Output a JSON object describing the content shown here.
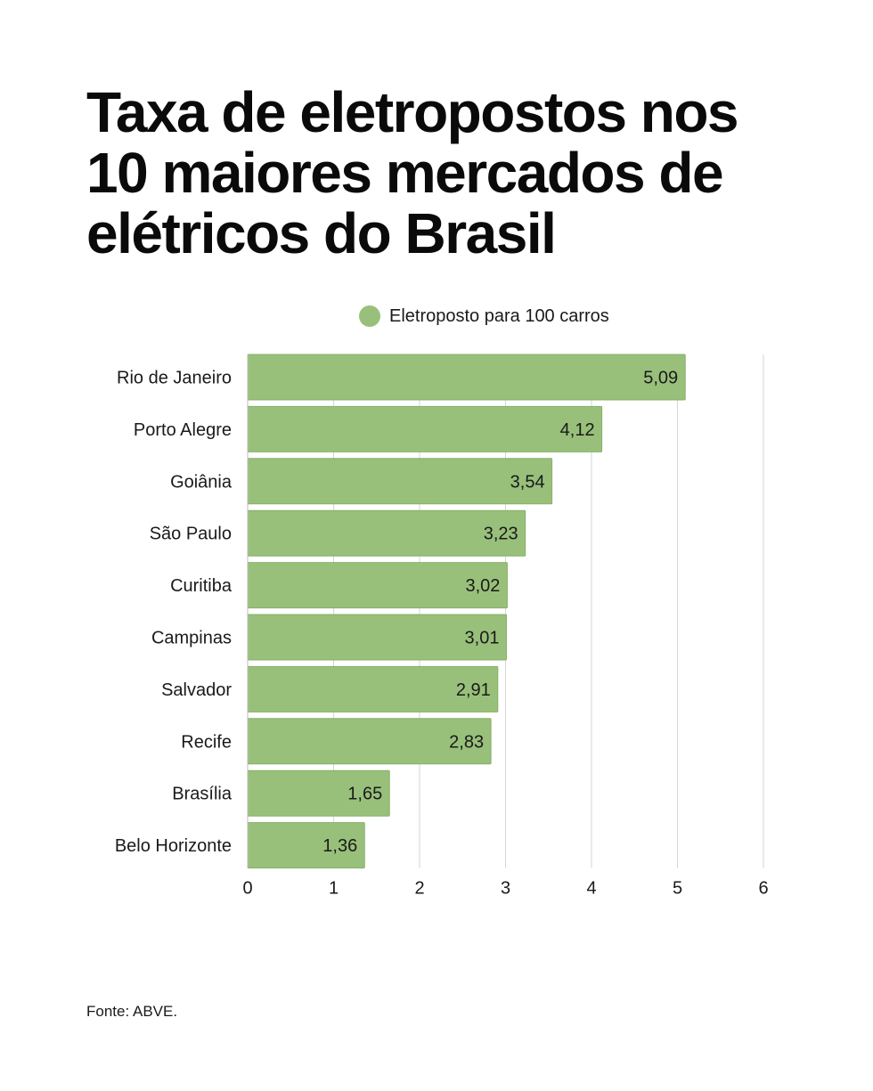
{
  "title_lines": [
    "Taxa de eletropostos nos",
    "10 maiores mercados de",
    "elétricos do Brasil"
  ],
  "legend": {
    "label": "Eletroposto para 100 carros"
  },
  "source": "Fonte: ABVE.",
  "colors": {
    "bar": "#98c07a",
    "bar_edge": "#86b068",
    "grid": "#d6d6d6",
    "text": "#1a1a1a"
  },
  "chart_data": {
    "type": "bar",
    "orientation": "horizontal",
    "categories": [
      "Rio de Janeiro",
      "Porto Alegre",
      "Goiânia",
      "São Paulo",
      "Curitiba",
      "Campinas",
      "Salvador",
      "Recife",
      "Brasília",
      "Belo Horizonte"
    ],
    "series": [
      {
        "name": "Eletroposto para 100 carros",
        "values": [
          5.09,
          4.12,
          3.54,
          3.23,
          3.02,
          3.01,
          2.91,
          2.83,
          1.65,
          1.36
        ],
        "labels": [
          "5,09",
          "4,12",
          "3,54",
          "3,23",
          "3,02",
          "3,01",
          "2,91",
          "2,83",
          "1,65",
          "1,36"
        ]
      }
    ],
    "xlim": [
      0,
      6
    ],
    "xticks": [
      0,
      1,
      2,
      3,
      4,
      5,
      6
    ],
    "xlabel": "",
    "ylabel": "",
    "grid": "vertical",
    "legend_position": "top"
  }
}
